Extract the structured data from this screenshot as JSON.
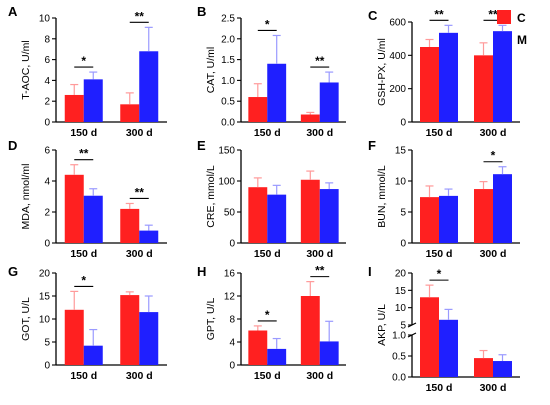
{
  "legend": [
    {
      "label": "C",
      "color": "#ff2020"
    },
    {
      "label": "M",
      "color": "#1f1fff"
    }
  ],
  "chart_data": [
    {
      "panel": "A",
      "type": "bar",
      "ylabel": "T-AOC, U/ml",
      "ylim": [
        0,
        10
      ],
      "yticks": [
        "0",
        "2",
        "4",
        "6",
        "8",
        "10"
      ],
      "categories": [
        "150 d",
        "300 d"
      ],
      "series": [
        {
          "name": "C",
          "values": [
            2.6,
            1.7
          ],
          "errors": [
            1.0,
            1.1
          ]
        },
        {
          "name": "M",
          "values": [
            4.1,
            6.8
          ],
          "errors": [
            0.7,
            2.3
          ]
        }
      ],
      "significance": [
        "*",
        "**"
      ]
    },
    {
      "panel": "B",
      "type": "bar",
      "ylabel": "CAT, U/ml",
      "ylim": [
        0,
        2.5
      ],
      "yticks": [
        "0.0",
        "0.5",
        "1.0",
        "1.5",
        "2.0",
        "2.5"
      ],
      "categories": [
        "150 d",
        "300 d"
      ],
      "series": [
        {
          "name": "C",
          "values": [
            0.6,
            0.18
          ],
          "errors": [
            0.32,
            0.05
          ]
        },
        {
          "name": "M",
          "values": [
            1.4,
            0.95
          ],
          "errors": [
            0.68,
            0.25
          ]
        }
      ],
      "significance": [
        "*",
        "**"
      ]
    },
    {
      "panel": "C",
      "type": "bar",
      "ylabel": "GSH-PX, U/ml",
      "ylim": [
        0,
        600
      ],
      "yticks": [
        "0",
        "200",
        "400",
        "600"
      ],
      "categories": [
        "150 d",
        "300 d"
      ],
      "series": [
        {
          "name": "C",
          "values": [
            450,
            400
          ],
          "errors": [
            45,
            75
          ]
        },
        {
          "name": "M",
          "values": [
            535,
            545
          ],
          "errors": [
            45,
            35
          ]
        }
      ],
      "significance": [
        "**",
        "**"
      ]
    },
    {
      "panel": "D",
      "type": "bar",
      "ylabel": "MDA, nmol/ml",
      "ylim": [
        0,
        6
      ],
      "yticks": [
        "0",
        "2",
        "4",
        "6"
      ],
      "categories": [
        "150 d",
        "300 d"
      ],
      "series": [
        {
          "name": "C",
          "values": [
            4.4,
            2.2
          ],
          "errors": [
            0.65,
            0.35
          ]
        },
        {
          "name": "M",
          "values": [
            3.05,
            0.8
          ],
          "errors": [
            0.45,
            0.35
          ]
        }
      ],
      "significance": [
        "**",
        "**"
      ]
    },
    {
      "panel": "E",
      "type": "bar",
      "ylabel": "CRE, mmol/L",
      "ylim": [
        0,
        150
      ],
      "yticks": [
        "0",
        "50",
        "100",
        "150"
      ],
      "categories": [
        "150 d",
        "300 d"
      ],
      "series": [
        {
          "name": "C",
          "values": [
            90,
            102
          ],
          "errors": [
            15,
            14
          ]
        },
        {
          "name": "M",
          "values": [
            78,
            87
          ],
          "errors": [
            15,
            10
          ]
        }
      ],
      "significance": [
        "",
        ""
      ]
    },
    {
      "panel": "F",
      "type": "bar",
      "ylabel": "BUN, mmol/L",
      "ylim": [
        0,
        15
      ],
      "yticks": [
        "0",
        "5",
        "10",
        "15"
      ],
      "categories": [
        "150 d",
        "300 d"
      ],
      "series": [
        {
          "name": "C",
          "values": [
            7.4,
            8.7
          ],
          "errors": [
            1.8,
            1.2
          ]
        },
        {
          "name": "M",
          "values": [
            7.6,
            11.1
          ],
          "errors": [
            1.1,
            1.2
          ]
        }
      ],
      "significance": [
        "",
        "*"
      ]
    },
    {
      "panel": "G",
      "type": "bar",
      "ylabel": "GOT, U/L",
      "ylim": [
        0,
        20
      ],
      "yticks": [
        "0",
        "5",
        "10",
        "15",
        "20"
      ],
      "categories": [
        "150 d",
        "300 d"
      ],
      "series": [
        {
          "name": "C",
          "values": [
            12,
            15.2
          ],
          "errors": [
            4.0,
            0.7
          ]
        },
        {
          "name": "M",
          "values": [
            4.2,
            11.5
          ],
          "errors": [
            3.5,
            3.5
          ]
        }
      ],
      "significance": [
        "*",
        ""
      ]
    },
    {
      "panel": "H",
      "type": "bar",
      "ylabel": "GPT, U/L",
      "ylim": [
        0,
        16
      ],
      "yticks": [
        "0",
        "4",
        "8",
        "12",
        "16"
      ],
      "categories": [
        "150 d",
        "300 d"
      ],
      "series": [
        {
          "name": "C",
          "values": [
            6.0,
            12.0
          ],
          "errors": [
            0.8,
            2.5
          ]
        },
        {
          "name": "M",
          "values": [
            2.8,
            4.1
          ],
          "errors": [
            1.8,
            3.5
          ]
        }
      ],
      "significance": [
        "*",
        "**"
      ]
    },
    {
      "panel": "I",
      "type": "bar",
      "ylabel": "AKP, U/L",
      "axis_break": true,
      "upper_ylim": [
        5,
        20
      ],
      "upper_yticks": [
        "5",
        "10",
        "15",
        "20"
      ],
      "lower_ylim": [
        0,
        1.0
      ],
      "lower_yticks": [
        "0.0",
        "0.5",
        "1.0"
      ],
      "categories": [
        "150 d",
        "300 d"
      ],
      "series": [
        {
          "name": "C",
          "values": [
            13,
            0.45
          ],
          "errors": [
            3.5,
            0.18
          ]
        },
        {
          "name": "M",
          "values": [
            6.5,
            0.38
          ],
          "errors": [
            3.0,
            0.15
          ]
        }
      ],
      "significance": [
        "*",
        ""
      ]
    }
  ]
}
